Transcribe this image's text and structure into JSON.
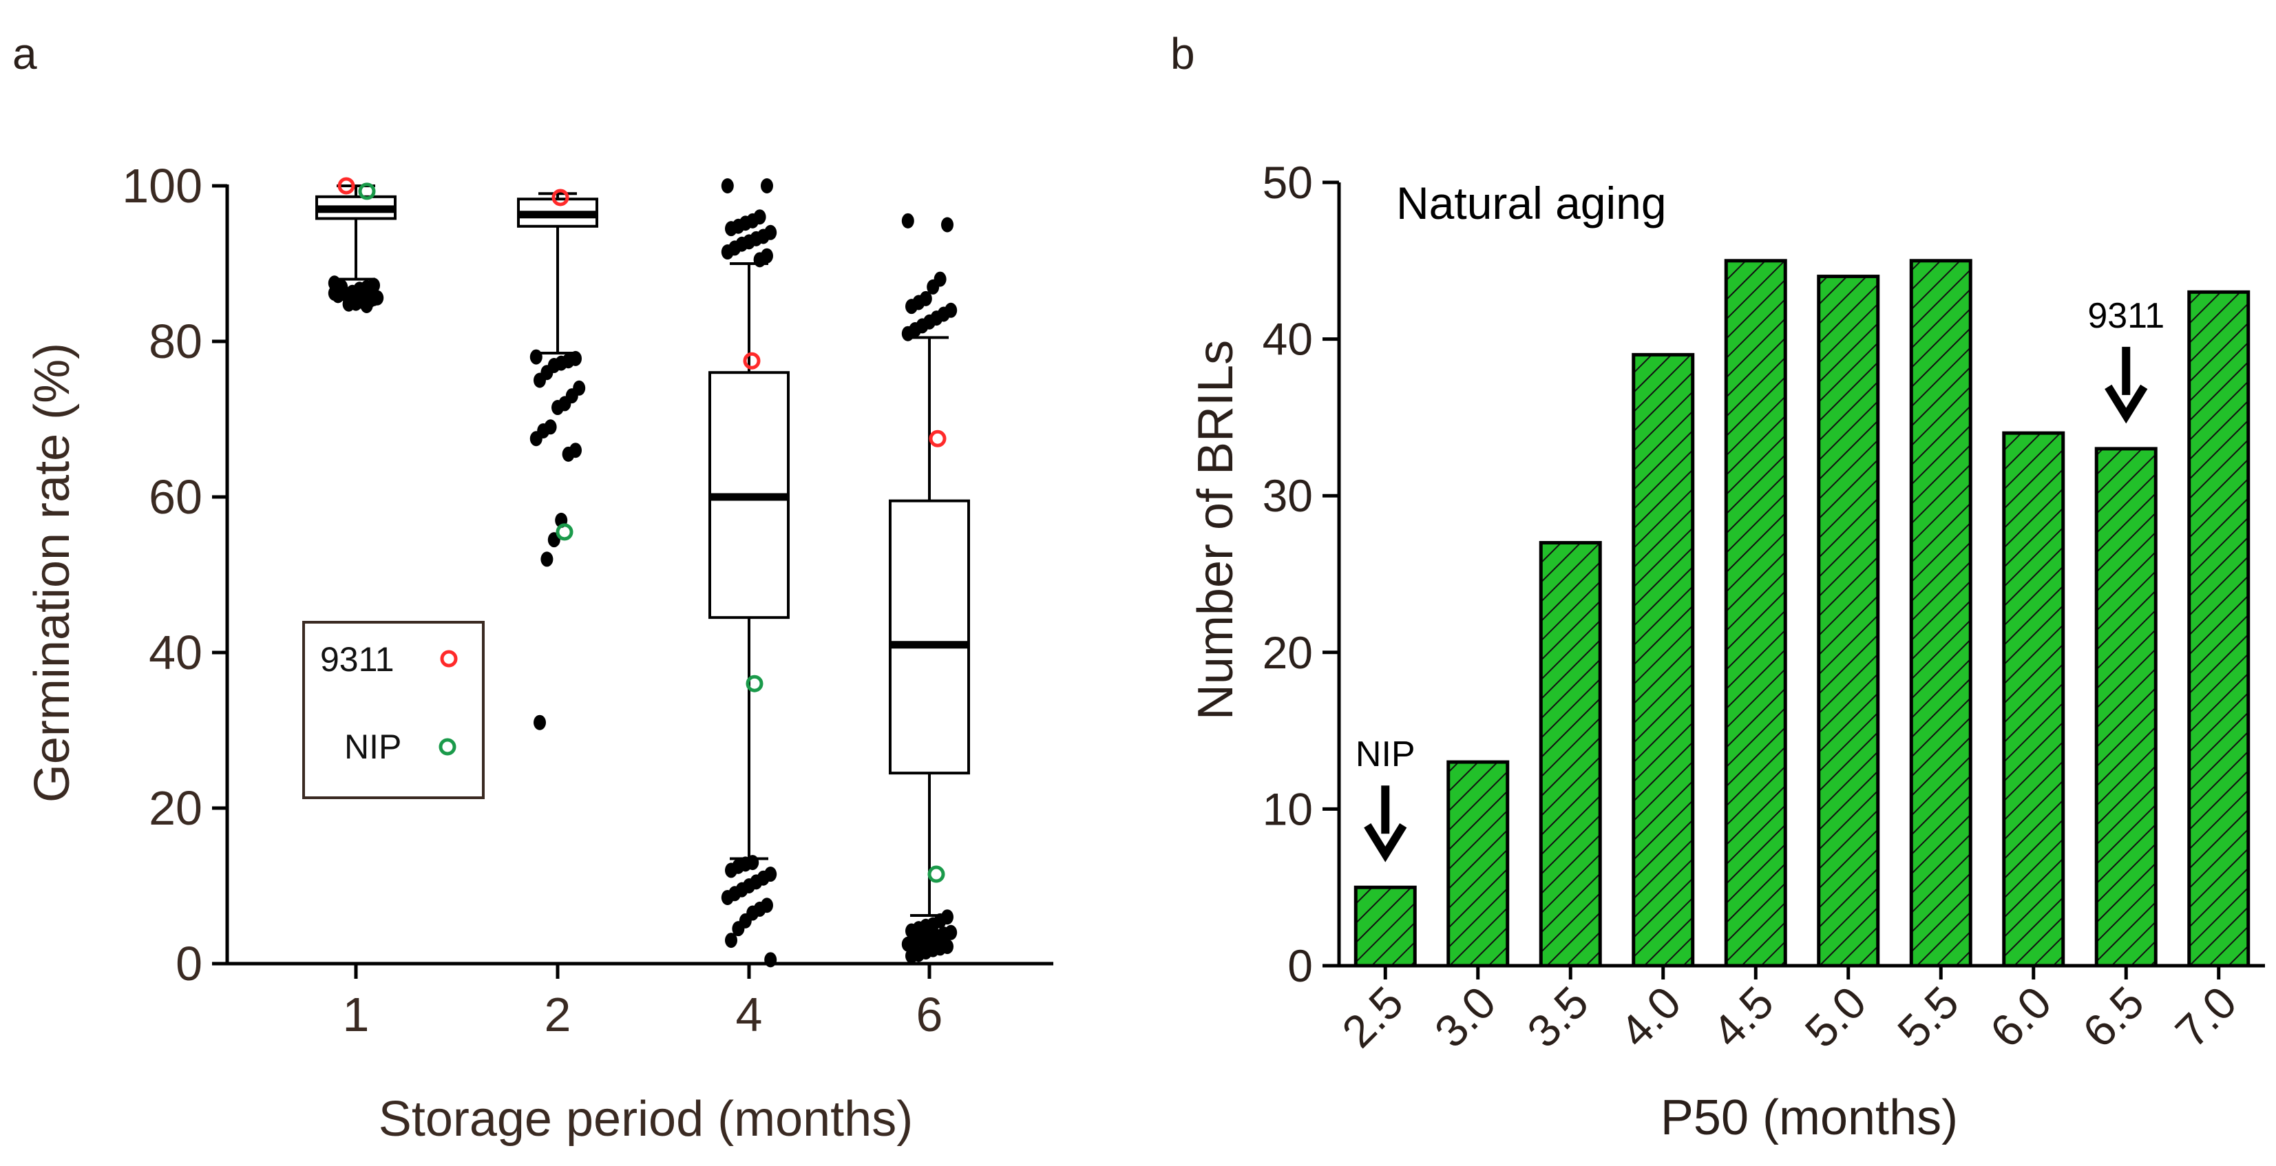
{
  "chart_data": [
    {
      "type": "box",
      "panel": "a",
      "title": "",
      "xlabel": "Storage period (months)",
      "ylabel": "Germination rate (%)",
      "ylim": [
        0,
        100
      ],
      "yticks": [
        0,
        20,
        40,
        60,
        80,
        100
      ],
      "categories": [
        "1",
        "2",
        "4",
        "6"
      ],
      "boxes": [
        {
          "category": "1",
          "q1": 95.8,
          "median": 97.0,
          "q3": 98.6,
          "whisker_low": 88,
          "whisker_high": 100
        },
        {
          "category": "2",
          "q1": 94.8,
          "median": 96.3,
          "q3": 98.3,
          "whisker_low": 78.5,
          "whisker_high": 99
        },
        {
          "category": "4",
          "q1": 44.5,
          "median": 60,
          "q3": 76,
          "whisker_low": 13.5,
          "whisker_high": 90
        },
        {
          "category": "6",
          "q1": 24.5,
          "median": 41,
          "q3": 59.5,
          "whisker_low": 6.2,
          "whisker_high": 80.5
        }
      ],
      "outliers": [
        {
          "category": "1",
          "values": [
            87.5,
            87.2,
            86.9,
            86.6,
            86.3,
            86.1,
            85.9,
            85.6,
            85.3,
            85.1,
            84.9,
            84.8,
            87.0,
            86.2,
            85.5,
            84.6,
            86.7,
            85.8
          ]
        },
        {
          "category": "2",
          "values": [
            78.0,
            77.8,
            77.5,
            77.2,
            76.9,
            76.0,
            75.0,
            74.0,
            73.0,
            72.0,
            71.5,
            69.0,
            68.5,
            67.5,
            66.0,
            65.5,
            57.0,
            54.5,
            52.0,
            31.0
          ]
        },
        {
          "category": "4",
          "values": [
            100,
            100,
            96.0,
            95.5,
            95.2,
            94.8,
            94.5,
            94.0,
            93.5,
            93.2,
            92.8,
            92.5,
            92.0,
            91.5,
            91.0,
            90.5,
            13.0,
            12.8,
            12.5,
            12.0,
            11.5,
            11.0,
            10.5,
            10.0,
            9.5,
            9.0,
            8.5,
            7.5,
            7.0,
            6.5,
            5.5,
            4.5,
            3.0,
            0.5
          ]
        },
        {
          "category": "6",
          "values": [
            95.5,
            95.0,
            88.0,
            87.0,
            85.5,
            85.0,
            84.5,
            84.0,
            83.5,
            83.0,
            82.5,
            82.0,
            81.5,
            81.0,
            6.0,
            5.5,
            5.0,
            4.8,
            4.5,
            4.2,
            4.0,
            3.8,
            3.5,
            3.2,
            3.0,
            2.8,
            2.5,
            2.2,
            2.0,
            1.8,
            1.5,
            1.2,
            1.0
          ]
        }
      ],
      "series": [
        {
          "name": "9311",
          "color": "#ff2a2a",
          "values": [
            100,
            98.5,
            77.5,
            67.5
          ]
        },
        {
          "name": "NIP",
          "color": "#1a9a4a",
          "values": [
            99.3,
            55.5,
            36.0,
            11.5
          ]
        }
      ],
      "legend": {
        "entries": [
          "9311",
          "NIP"
        ],
        "placement": "center-left"
      }
    },
    {
      "type": "bar",
      "panel": "b",
      "title": "Natural aging",
      "xlabel": "P50 (months)",
      "ylabel": "Number of BRILs",
      "ylim": [
        0,
        50
      ],
      "yticks": [
        0,
        10,
        20,
        30,
        40,
        50
      ],
      "categories": [
        "2.5",
        "3.0",
        "3.5",
        "4.0",
        "4.5",
        "5.0",
        "5.5",
        "6.0",
        "6.5",
        "7.0"
      ],
      "values": [
        5,
        13,
        27,
        39,
        45,
        44,
        45,
        34,
        33,
        43
      ],
      "bar_color": "#22c02a",
      "annotations": [
        {
          "text": "NIP",
          "category": "2.5"
        },
        {
          "text": "9311",
          "category": "6.5"
        }
      ]
    }
  ],
  "panel_labels": {
    "a": "a",
    "b": "b"
  },
  "colors": {
    "text_a": "#3a2a22",
    "axis": "#000000",
    "point": "#000000"
  }
}
